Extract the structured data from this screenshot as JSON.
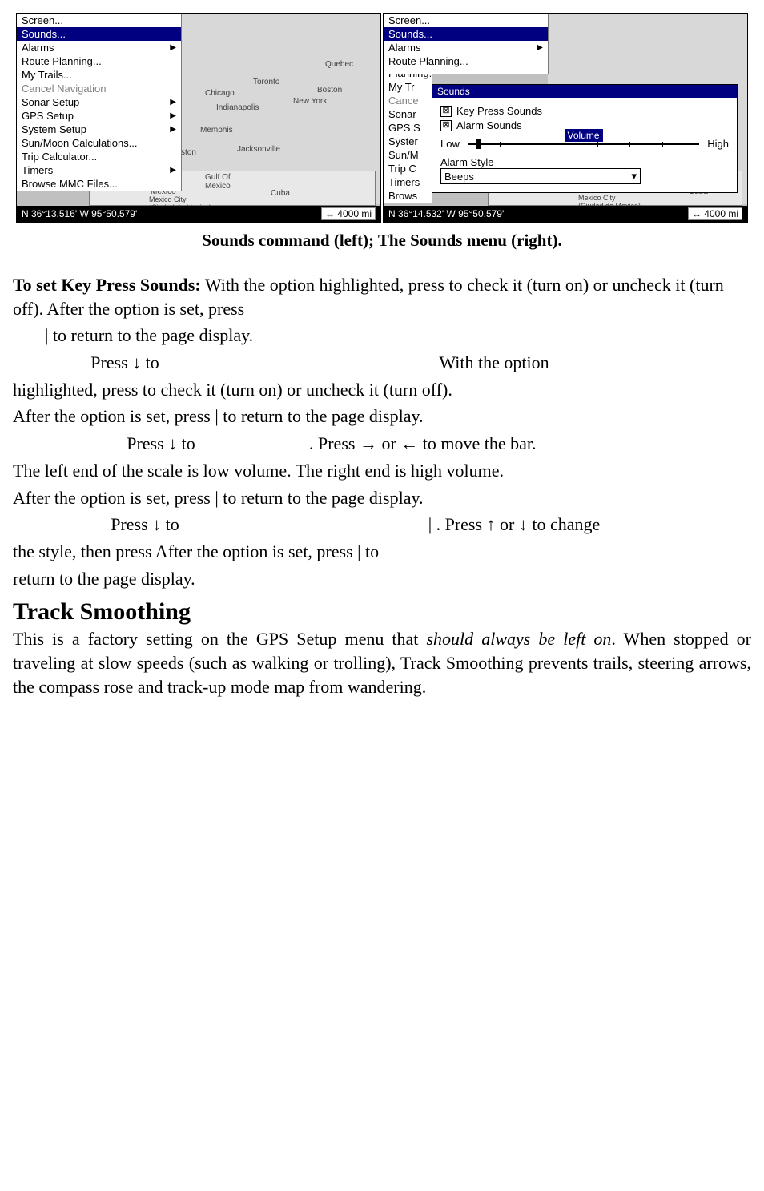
{
  "left_screen": {
    "menu": [
      {
        "label": "Screen...",
        "selected": false,
        "arrow": false,
        "dim": false
      },
      {
        "label": "Sounds...",
        "selected": true,
        "arrow": false,
        "dim": false
      },
      {
        "label": "Alarms",
        "selected": false,
        "arrow": true,
        "dim": false
      },
      {
        "label": "Route Planning...",
        "selected": false,
        "arrow": false,
        "dim": false
      },
      {
        "label": "My Trails...",
        "selected": false,
        "arrow": false,
        "dim": false
      },
      {
        "label": "Cancel Navigation",
        "selected": false,
        "arrow": false,
        "dim": true
      },
      {
        "label": "Sonar Setup",
        "selected": false,
        "arrow": true,
        "dim": false
      },
      {
        "label": "GPS Setup",
        "selected": false,
        "arrow": true,
        "dim": false
      },
      {
        "label": "System Setup",
        "selected": false,
        "arrow": true,
        "dim": false
      },
      {
        "label": "Sun/Moon Calculations...",
        "selected": false,
        "arrow": false,
        "dim": false
      },
      {
        "label": "Trip Calculator...",
        "selected": false,
        "arrow": false,
        "dim": false
      },
      {
        "label": "Timers",
        "selected": false,
        "arrow": true,
        "dim": false
      },
      {
        "label": "Browse MMC Files...",
        "selected": false,
        "arrow": false,
        "dim": false
      }
    ],
    "map_labels": {
      "quebec": "Quebec",
      "toronto": "Toronto",
      "boston": "Boston",
      "chicago": "Chicago",
      "newyork": "New York",
      "indianapolis": "Indianapolis",
      "memphis": "Memphis",
      "jacksonville": "Jacksonville",
      "gulf": "Gulf Of\nMexico",
      "mexico": "Mexico",
      "mexicocity": "Mexico City\n(Ciudad de Mexico)",
      "cuba": "Cuba",
      "ston": "ston"
    },
    "bottom": {
      "left": "N   36°13.516'    W    95°50.579'",
      "right": "↔ 4000 mi"
    }
  },
  "right_screen": {
    "menu": [
      {
        "label": "Screen...",
        "short": "Screen..."
      },
      {
        "label": "Sounds...",
        "short": "Sounds...",
        "selected": true
      },
      {
        "label": "Alarms",
        "short": "Alarms"
      },
      {
        "label": "Route Planning...",
        "short": "Route Planning..."
      },
      {
        "label": "My Trails...",
        "short": "My Tr"
      },
      {
        "label": "Cancel Navigation",
        "short": "Cance",
        "dim": true
      },
      {
        "label": "Sonar Setup",
        "short": "Sonar"
      },
      {
        "label": "GPS Setup",
        "short": "GPS S"
      },
      {
        "label": "System Setup",
        "short": "Syster"
      },
      {
        "label": "Sun/Moon Calculations...",
        "short": "Sun/M"
      },
      {
        "label": "Trip Calculator...",
        "short": "Trip C"
      },
      {
        "label": "Timers",
        "short": "Timers"
      },
      {
        "label": "Browse MMC Files...",
        "short": "Brows"
      }
    ],
    "popup": {
      "title": "Sounds",
      "keypress": "Key Press Sounds",
      "alarm": "Alarm Sounds",
      "low": "Low",
      "volume": "Volume",
      "high": "High",
      "alarm_style": "Alarm Style",
      "beeps": "Beeps"
    },
    "map_labels": {
      "mexicocity": "Mexico City\n(Ciudad de Mexico)",
      "cuba": "Cuba"
    },
    "bottom": {
      "left": "N    36°14.532'     W     95°50.579'",
      "right": "↔ 4000 mi"
    }
  },
  "caption": "Sounds command (left); The Sounds menu (right).",
  "text": {
    "para1a": "To set Key Press Sounds:",
    "para1b": " With the option highlighted, press          to check it (turn on) or uncheck it (turn off). After the option is set, press",
    "para1c": "         |          to return to the page display.",
    "line2a": "Press ↓ to",
    "line2b": "With the option",
    "line3": "highlighted, press          to check it (turn on) or uncheck it (turn off).",
    "line4": "After the option is set, press           |           to return to the page display.",
    "line5a": "Press ↓ to",
    "line5b": ". Press → or ← to move the bar.",
    "line6": "The left end of the scale is low volume. The right end is high volume.",
    "line7": "After the option is set, press           |           to return to the page display.",
    "line8a": "Press ↓ to",
    "line8b": "|       . Press ↑ or ↓ to change",
    "line9": "the style, then press           After the option is set, press           |           to",
    "line10": "return to the page display.",
    "heading": "Track Smoothing",
    "para2a": "This is a factory setting on the GPS Setup menu that ",
    "para2b": "should always be left on",
    "para2c": ". When stopped or traveling at slow speeds (such as walking or trolling), Track Smoothing prevents trails, steering arrows, the compass rose and track-up mode map from wandering."
  },
  "colors": {
    "menu_sel_bg": "#000080",
    "menu_sel_fg": "#ffffff",
    "screen_bg": "#c0c0c0",
    "map_bg": "#d8d8d8"
  }
}
